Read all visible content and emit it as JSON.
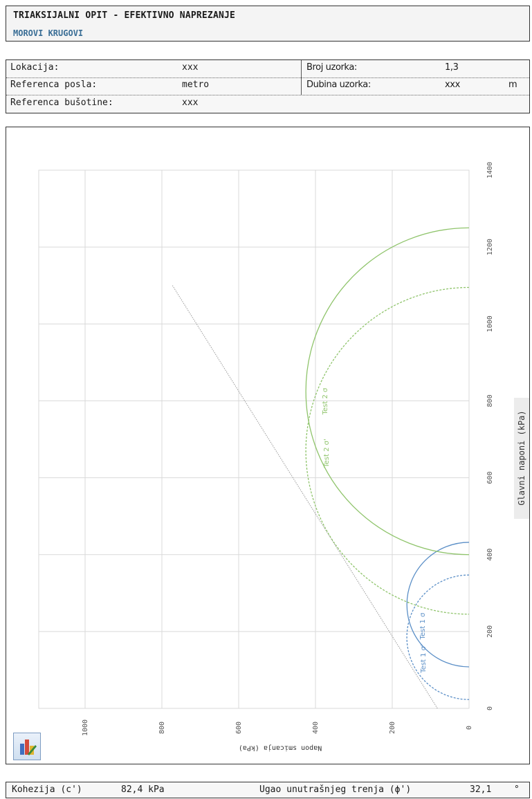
{
  "header": {
    "title": "TRIAKSIJALNI OPIT - EFEKTIVNO NAPREZANJE",
    "subtitle": "MOROVI KRUGOVI"
  },
  "info": {
    "lokacija_label": "Lokacija:",
    "lokacija_value": "xxx",
    "referenca_posla_label": "Referenca posla:",
    "referenca_posla_value": "metro",
    "referenca_busotine_label": "Referenca bušotine:",
    "referenca_busotine_value": "xxx",
    "broj_uzorka_label": "Broj uzorka:",
    "broj_uzorka_value": "1,3",
    "dubina_uzorka_label": "Dubina uzorka:",
    "dubina_uzorka_value": "xxx",
    "dubina_uzorka_unit": "m"
  },
  "chart_data": {
    "type": "scatter",
    "orientation": "rotated 90° clockwise (principal stress axis runs bottom-to-top, shear axis runs right-to-left)",
    "xlabel": "Glavni naponi (kPa)",
    "ylabel": "Napon smicanja (kPa)",
    "xlim": [
      0,
      1400
    ],
    "ylim": [
      0,
      1100
    ],
    "x_ticks": [
      "0",
      "200",
      "400",
      "600",
      "800",
      "1000",
      "1200",
      "1400"
    ],
    "y_ticks": [
      "0",
      "200",
      "400",
      "600",
      "800",
      "1000"
    ],
    "grid": true,
    "circles": [
      {
        "name": "Test 1 σ",
        "sigma3": 108,
        "sigma1": 432,
        "style": "solid",
        "color": "#5b8fc7"
      },
      {
        "name": "Test 1 σ'",
        "sigma3": 23,
        "sigma1": 347,
        "style": "dashed",
        "color": "#5b8fc7"
      },
      {
        "name": "Test 2 σ",
        "sigma3": 400,
        "sigma1": 1250,
        "style": "solid",
        "color": "#8fc46b"
      },
      {
        "name": "Test 2 σ'",
        "sigma3": 245,
        "sigma1": 1095,
        "style": "dashed",
        "color": "#8fc46b"
      }
    ],
    "circle_labels": [
      "Test 1 σ",
      "Test 1 σ'",
      "Test 2 σ",
      "Test 2 σ'"
    ],
    "envelope": {
      "cohesion": 82.4,
      "phi_deg": 32.1,
      "sigma_range": [
        0,
        1100
      ],
      "color": "#9a9a9a"
    }
  },
  "results": {
    "kohezija_label": "Kohezija (c')",
    "kohezija_value": "82,4 kPa",
    "ugao_label": "Ugao unutrašnjeg trenja (ϕ')",
    "ugao_value": "32,1",
    "ugao_unit": "°"
  },
  "icons": {
    "chart": "chart-icon"
  }
}
